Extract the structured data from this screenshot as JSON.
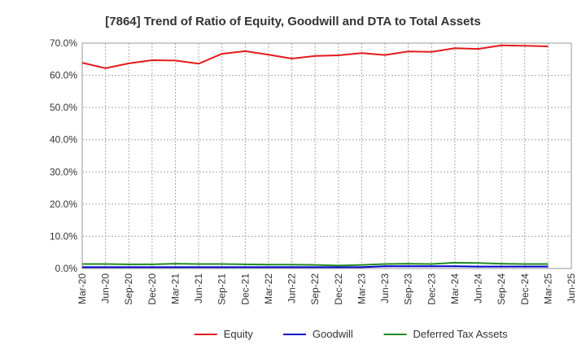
{
  "chart_data": {
    "type": "line",
    "title": "[7864]  Trend of Ratio of Equity, Goodwill and DTA to Total Assets",
    "xlabel": "",
    "ylabel": "",
    "x": [
      "Mar-20",
      "Jun-20",
      "Sep-20",
      "Dec-20",
      "Mar-21",
      "Jun-21",
      "Sep-21",
      "Dec-21",
      "Mar-22",
      "Jun-22",
      "Sep-22",
      "Dec-22",
      "Mar-23",
      "Jun-23",
      "Sep-23",
      "Dec-23",
      "Mar-24",
      "Jun-24",
      "Sep-24",
      "Dec-24",
      "Mar-25",
      "Jun-25"
    ],
    "ylim": [
      0,
      70
    ],
    "yticks": [
      "0.0%",
      "10.0%",
      "20.0%",
      "30.0%",
      "40.0%",
      "50.0%",
      "60.0%",
      "70.0%"
    ],
    "ytick_values": [
      0,
      10,
      20,
      30,
      40,
      50,
      60,
      70
    ],
    "grid": true,
    "legend_position": "bottom",
    "series": [
      {
        "name": "Equity",
        "color": "#e41a1c",
        "values": [
          63.9,
          62.2,
          63.7,
          64.7,
          64.6,
          63.6,
          66.7,
          67.5,
          66.4,
          65.2,
          66.0,
          66.2,
          66.9,
          66.3,
          67.4,
          67.3,
          68.4,
          68.2,
          69.3,
          69.2,
          69.0,
          null
        ]
      },
      {
        "name": "Goodwill",
        "color": "#0000cc",
        "values": [
          0.4,
          0.4,
          0.4,
          0.4,
          0.4,
          0.4,
          0.4,
          0.4,
          0.4,
          0.4,
          0.4,
          0.4,
          0.4,
          0.7,
          0.7,
          0.7,
          0.7,
          0.6,
          0.6,
          0.6,
          0.6,
          null
        ]
      },
      {
        "name": "Deferred Tax Assets",
        "color": "#228b22",
        "values": [
          1.4,
          1.4,
          1.3,
          1.3,
          1.5,
          1.4,
          1.4,
          1.3,
          1.2,
          1.2,
          1.1,
          0.9,
          1.1,
          1.4,
          1.5,
          1.4,
          1.8,
          1.7,
          1.5,
          1.4,
          1.4,
          null
        ]
      }
    ]
  }
}
